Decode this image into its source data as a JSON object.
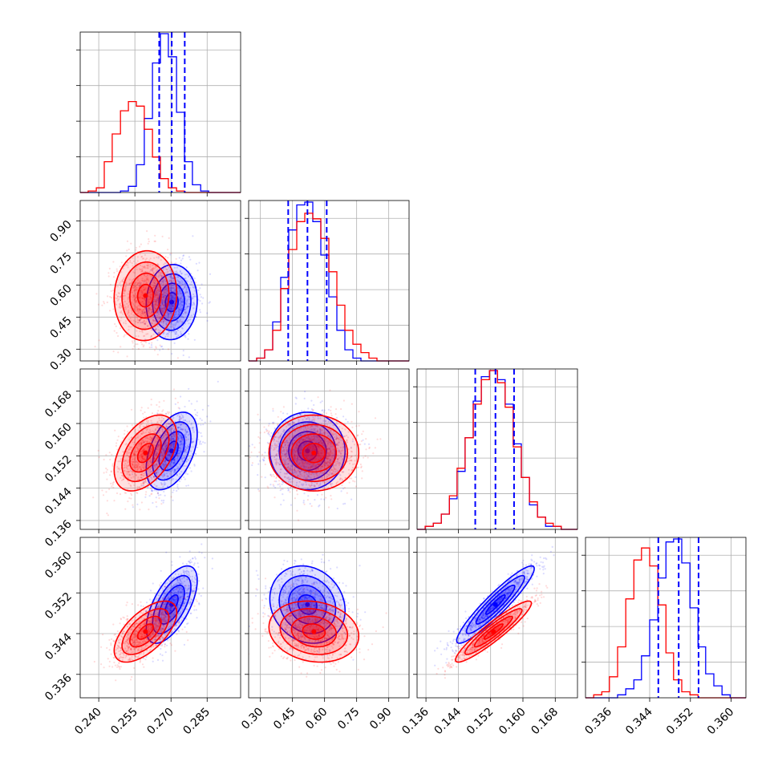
{
  "chart_data": {
    "type": "corner",
    "parameters": 4,
    "grid": true,
    "colors": {
      "series_a": "#0000ff",
      "series_b": "#ff0000"
    },
    "quantile_lines": {
      "style": "dashed",
      "color": "#0000ff",
      "values": [
        [
          0.2651,
          0.2703,
          0.2757
        ],
        [
          0.43,
          0.52,
          0.61
        ],
        [
          0.1482,
          0.1532,
          0.1578
        ],
        [
          0.3457,
          0.3497,
          0.3536
        ]
      ]
    },
    "axes": [
      {
        "range": [
          0.2323,
          0.2989
        ],
        "ticks": [
          "0.240",
          "0.255",
          "0.270",
          "0.285"
        ]
      },
      {
        "range": [
          0.245,
          0.995
        ],
        "ticks": [
          "0.30",
          "0.45",
          "0.60",
          "0.75",
          "0.90"
        ]
      },
      {
        "range": [
          0.1338,
          0.1735
        ],
        "ticks": [
          "0.136",
          "0.144",
          "0.152",
          "0.160",
          "0.168"
        ]
      },
      {
        "range": [
          0.3314,
          0.3629
        ],
        "ticks": [
          "0.336",
          "0.344",
          "0.352",
          "0.360"
        ]
      }
    ],
    "marginals": [
      {
        "bin_edges": [
          0.2323,
          0.2356,
          0.239,
          0.2423,
          0.2456,
          0.249,
          0.2523,
          0.2556,
          0.2589,
          0.2623,
          0.2656,
          0.2689,
          0.2723,
          0.2756,
          0.2789,
          0.2823,
          0.2856,
          0.2889,
          0.2923,
          0.2956,
          0.2989
        ],
        "series_a_counts": [
          0,
          0,
          0,
          0,
          0,
          1,
          4,
          18,
          48,
          84,
          103,
          88,
          52,
          20,
          5,
          1,
          0,
          0,
          0,
          0
        ],
        "series_b_counts": [
          0,
          1,
          3,
          20,
          38,
          53,
          59,
          56,
          41,
          23,
          9,
          3,
          1,
          0,
          0,
          0,
          0,
          0,
          0,
          0
        ]
      },
      {
        "bin_edges": [
          0.245,
          0.2825,
          0.32,
          0.3575,
          0.395,
          0.4325,
          0.47,
          0.5075,
          0.545,
          0.5825,
          0.62,
          0.6575,
          0.695,
          0.7325,
          0.77,
          0.8075,
          0.845,
          0.8825,
          0.92,
          0.9575,
          0.995
        ],
        "series_a_counts": [
          0,
          1,
          4,
          14,
          30,
          47,
          56,
          57,
          50,
          38,
          23,
          11,
          4,
          1,
          0,
          0,
          0,
          0,
          0,
          0
        ],
        "series_b_counts": [
          0,
          1,
          4,
          11,
          26,
          40,
          50,
          53,
          51,
          44,
          32,
          20,
          11,
          6,
          3,
          1,
          0,
          0,
          0,
          0
        ]
      },
      {
        "bin_edges": [
          0.1338,
          0.1358,
          0.1378,
          0.1398,
          0.1418,
          0.1437,
          0.1457,
          0.1477,
          0.1497,
          0.1517,
          0.1537,
          0.1556,
          0.1576,
          0.1596,
          0.1616,
          0.1636,
          0.1656,
          0.1675,
          0.1695,
          0.1715,
          0.1735
        ],
        "series_a_counts": [
          0,
          1,
          2,
          5,
          10,
          19,
          30,
          42,
          50,
          52,
          49,
          41,
          28,
          17,
          8,
          4,
          1,
          1,
          0,
          0
        ],
        "series_b_counts": [
          0,
          1,
          2,
          5,
          11,
          20,
          30,
          41,
          49,
          52,
          48,
          40,
          27,
          17,
          9,
          4,
          2,
          1,
          0,
          0
        ]
      },
      {
        "bin_edges": [
          0.3314,
          0.333,
          0.3346,
          0.3361,
          0.3377,
          0.3393,
          0.3409,
          0.3424,
          0.344,
          0.3456,
          0.3472,
          0.3487,
          0.3503,
          0.3519,
          0.3535,
          0.355,
          0.3566,
          0.3582,
          0.3598,
          0.3613,
          0.3629
        ],
        "series_a_counts": [
          0,
          0,
          0,
          0,
          1,
          3,
          6,
          14,
          26,
          40,
          52,
          53,
          45,
          30,
          17,
          8,
          4,
          1,
          0,
          0
        ],
        "series_b_counts": [
          0,
          1,
          2,
          7,
          17,
          33,
          46,
          50,
          44,
          31,
          15,
          6,
          2,
          1,
          0,
          0,
          0,
          0,
          0,
          0
        ]
      }
    ],
    "pairs": [
      {
        "x": 0,
        "y": 1,
        "series_a": {
          "mean": [
            0.2703,
            0.52
          ],
          "sd": [
            0.0053,
            0.088
          ],
          "corr": 0.05
        },
        "series_b": {
          "mean": [
            0.2594,
            0.55
          ],
          "sd": [
            0.0065,
            0.105
          ],
          "corr": 0.05
        }
      },
      {
        "x": 0,
        "y": 2,
        "series_a": {
          "mean": [
            0.2703,
            0.1532
          ],
          "sd": [
            0.0053,
            0.0048
          ],
          "corr": 0.45
        },
        "series_b": {
          "mean": [
            0.2594,
            0.1527
          ],
          "sd": [
            0.0065,
            0.0047
          ],
          "corr": 0.45
        }
      },
      {
        "x": 1,
        "y": 2,
        "series_a": {
          "mean": [
            0.52,
            0.1532
          ],
          "sd": [
            0.088,
            0.0048
          ],
          "corr": 0.0
        },
        "series_b": {
          "mean": [
            0.55,
            0.1527
          ],
          "sd": [
            0.105,
            0.0047
          ],
          "corr": 0.0
        }
      },
      {
        "x": 0,
        "y": 3,
        "series_a": {
          "mean": [
            0.2703,
            0.3497
          ],
          "sd": [
            0.0053,
            0.0038
          ],
          "corr": 0.62
        },
        "series_b": {
          "mean": [
            0.2594,
            0.3444
          ],
          "sd": [
            0.0065,
            0.003
          ],
          "corr": 0.62
        }
      },
      {
        "x": 1,
        "y": 3,
        "series_a": {
          "mean": [
            0.52,
            0.3497
          ],
          "sd": [
            0.088,
            0.0038
          ],
          "corr": -0.15
        },
        "series_b": {
          "mean": [
            0.55,
            0.3444
          ],
          "sd": [
            0.105,
            0.003
          ],
          "corr": -0.15
        }
      },
      {
        "x": 2,
        "y": 3,
        "series_a": {
          "mean": [
            0.1532,
            0.3497
          ],
          "sd": [
            0.0048,
            0.0038
          ],
          "corr": 0.93
        },
        "series_b": {
          "mean": [
            0.1527,
            0.3444
          ],
          "sd": [
            0.0047,
            0.003
          ],
          "corr": 0.93
        }
      }
    ]
  }
}
